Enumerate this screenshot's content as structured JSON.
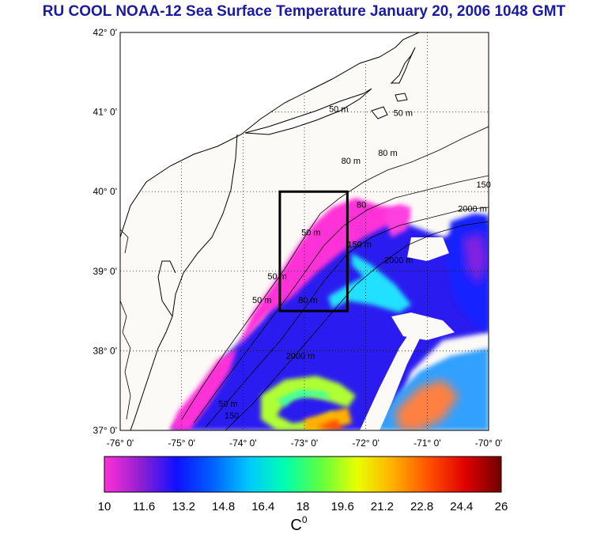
{
  "title": "RU COOL  NOAA-12 Sea Surface Temperature January 20, 2006 1048 GMT",
  "map": {
    "lat_range": [
      37,
      42
    ],
    "lon_range": [
      -76,
      -70
    ],
    "lat_labels": [
      "37° 0'",
      "38° 0'",
      "39° 0'",
      "40° 0'",
      "41° 0'",
      "42° 0'"
    ],
    "lon_labels": [
      "-76° 0'",
      "-75° 0'",
      "-74° 0'",
      "-73° 0'",
      "-72° 0'",
      "-71° 0'",
      "-70° 0'"
    ],
    "grid": true,
    "box": {
      "lon_min": -73.4,
      "lon_max": -72.3,
      "lat_min": 38.5,
      "lat_max": 40.0
    },
    "contour_labels": [
      {
        "text": "50 m",
        "lon": -72.6,
        "lat": 41.0
      },
      {
        "text": "50 m",
        "lon": -71.55,
        "lat": 40.95
      },
      {
        "text": "80 m",
        "lon": -71.8,
        "lat": 40.45
      },
      {
        "text": "80 m",
        "lon": -72.4,
        "lat": 40.35
      },
      {
        "text": "150",
        "lon": -70.2,
        "lat": 40.05
      },
      {
        "text": "2000 m",
        "lon": -70.5,
        "lat": 39.75
      },
      {
        "text": "80",
        "lon": -72.15,
        "lat": 39.8
      },
      {
        "text": "50 m",
        "lon": -73.05,
        "lat": 39.45
      },
      {
        "text": "150 m",
        "lon": -72.3,
        "lat": 39.3
      },
      {
        "text": "2000 m",
        "lon": -71.7,
        "lat": 39.1
      },
      {
        "text": "50 m",
        "lon": -73.6,
        "lat": 38.9
      },
      {
        "text": "50 m",
        "lon": -73.85,
        "lat": 38.6
      },
      {
        "text": "80 m",
        "lon": -73.1,
        "lat": 38.6
      },
      {
        "text": "2000 m",
        "lon": -73.3,
        "lat": 37.9
      },
      {
        "text": "50 m",
        "lon": -74.4,
        "lat": 37.3
      },
      {
        "text": "150",
        "lon": -74.3,
        "lat": 37.15
      }
    ]
  },
  "colorbar": {
    "min": 10,
    "max": 26,
    "ticks": [
      "10",
      "11.6",
      "13.2",
      "14.8",
      "16.4",
      "18",
      "19.6",
      "21.2",
      "22.8",
      "24.4",
      "26"
    ],
    "unit_base": "C",
    "unit_sup": "0",
    "colors": [
      "#ff30d8",
      "#9020d0",
      "#1010ff",
      "#0060ff",
      "#00c8ff",
      "#00ffb0",
      "#60ff40",
      "#e8ff00",
      "#ffb000",
      "#ff5000",
      "#e00000",
      "#700000"
    ]
  },
  "colors": {
    "land": "#ffffff",
    "water_nodata": "#fcfaf6",
    "title": "#1a1aa0"
  }
}
